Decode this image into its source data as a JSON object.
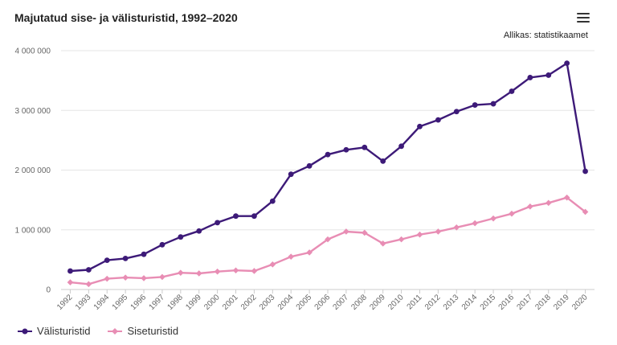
{
  "title": "Majutatud sise- ja välisturistid, 1992–2020",
  "source": "Allikas: statistikaamet",
  "menu_icon": "hamburger-menu-icon",
  "chart_data": {
    "type": "line",
    "title": "Majutatud sise- ja välisturistid, 1992–2020",
    "xlabel": "",
    "ylabel": "",
    "ylim": [
      0,
      4000000
    ],
    "grid": true,
    "legend": "bottom-left",
    "y_ticks": [
      0,
      1000000,
      2000000,
      3000000,
      4000000
    ],
    "y_tick_labels": [
      "0",
      "1 000 000",
      "2 000 000",
      "3 000 000",
      "4 000 000"
    ],
    "categories": [
      "1992",
      "1993",
      "1994",
      "1995",
      "1996",
      "1997",
      "1998",
      "1999",
      "2000",
      "2001",
      "2002",
      "2003",
      "2004",
      "2005",
      "2006",
      "2007",
      "2008",
      "2009",
      "2010",
      "2011",
      "2012",
      "2013",
      "2014",
      "2015",
      "2016",
      "2017",
      "2018",
      "2019",
      "2020"
    ],
    "series": [
      {
        "name": "Välisturistid",
        "color": "#3d1a78",
        "marker": "circle",
        "values": [
          310000,
          330000,
          490000,
          520000,
          590000,
          750000,
          880000,
          980000,
          1120000,
          1230000,
          1230000,
          1480000,
          1930000,
          2070000,
          2260000,
          2340000,
          2380000,
          2150000,
          2400000,
          2730000,
          2840000,
          2980000,
          3090000,
          3110000,
          3320000,
          3550000,
          3590000,
          3790000,
          1980000
        ]
      },
      {
        "name": "Siseturistid",
        "color": "#e88db4",
        "marker": "diamond",
        "values": [
          120000,
          90000,
          180000,
          200000,
          190000,
          210000,
          280000,
          270000,
          300000,
          320000,
          310000,
          420000,
          550000,
          620000,
          840000,
          970000,
          950000,
          770000,
          840000,
          920000,
          970000,
          1040000,
          1110000,
          1190000,
          1270000,
          1390000,
          1450000,
          1540000,
          1300000
        ]
      }
    ]
  }
}
